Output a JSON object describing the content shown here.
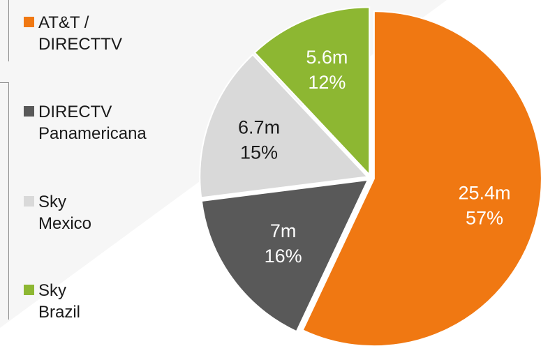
{
  "chart_data": {
    "type": "pie",
    "slices": [
      {
        "name": "AT&T / DIRECTTV",
        "value": 57,
        "amount": "25.4m",
        "pct": "57%",
        "color": "#f07812",
        "text_color": "#ffffff"
      },
      {
        "name": "DIRECTV\nPanamericana",
        "value": 16,
        "amount": "7m",
        "pct": "16%",
        "color": "#595959",
        "text_color": "#ffffff"
      },
      {
        "name": "Sky Mexico",
        "value": 15,
        "amount": "6.7m",
        "pct": "15%",
        "color": "#d9d9d9",
        "text_color": "#1a1a1a"
      },
      {
        "name": "Sky Brazil",
        "value": 12,
        "amount": "5.6m",
        "pct": "12%",
        "color": "#8db732",
        "text_color": "#ffffff"
      }
    ],
    "start_angle_deg": 0,
    "direction": "clockwise",
    "legend_position": "left"
  }
}
